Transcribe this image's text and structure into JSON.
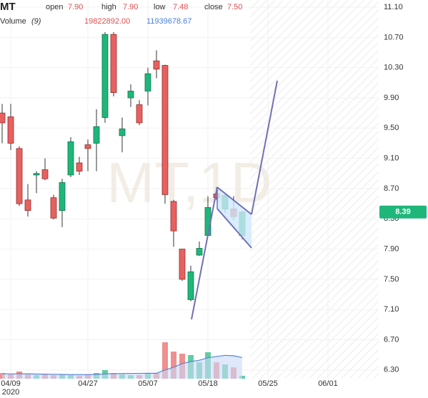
{
  "chart_data": {
    "type": "candlestick",
    "watermark": "MT,1D",
    "header": {
      "symbol": "MT",
      "fields": [
        {
          "label": "open",
          "value": "7.90"
        },
        {
          "label": "high",
          "value": "7.90"
        },
        {
          "label": "low",
          "value": "7.48"
        },
        {
          "label": "close",
          "value": "7.50"
        }
      ],
      "volume_label": "Volume",
      "volume_period": "(9)",
      "volume_value": "19822892.00",
      "volume_ma_value": "11939678.67"
    },
    "open": [
      9.7,
      9.65,
      9.23,
      8.55,
      8.88,
      8.95,
      8.58,
      8.41,
      8.88,
      9.04,
      9.28,
      9.3,
      9.64,
      10.74,
      9.4,
      9.9,
      9.81,
      9.99,
      10.39,
      10.33,
      8.53,
      7.9,
      7.23,
      7.82,
      8.08,
      8.63,
      8.43,
      8.43,
      8.08
    ],
    "high": [
      9.82,
      9.82,
      9.26,
      8.76,
      8.93,
      9.1,
      8.62,
      8.83,
      9.38,
      9.12,
      9.35,
      9.75,
      10.77,
      10.77,
      9.64,
      10.08,
      9.87,
      10.3,
      10.53,
      10.34,
      8.55,
      7.9,
      7.68,
      8.0,
      8.6,
      8.72,
      8.64,
      8.6,
      8.4
    ],
    "low": [
      9.3,
      9.21,
      8.47,
      8.33,
      8.64,
      8.81,
      8.29,
      8.19,
      8.85,
      8.88,
      8.93,
      8.93,
      9.57,
      9.92,
      9.18,
      9.78,
      9.54,
      9.8,
      10.16,
      8.5,
      7.93,
      7.48,
      7.21,
      7.81,
      8.06,
      8.55,
      8.38,
      8.28,
      8.03
    ],
    "close": [
      9.57,
      9.3,
      8.5,
      8.41,
      8.9,
      8.83,
      8.31,
      8.78,
      9.32,
      8.93,
      9.23,
      9.52,
      10.74,
      9.97,
      9.49,
      9.99,
      9.57,
      10.22,
      10.28,
      8.62,
      8.14,
      7.5,
      7.6,
      7.91,
      8.45,
      8.58,
      8.61,
      8.33,
      8.39
    ],
    "volume": [
      4500000,
      3400000,
      5700000,
      3400000,
      2800000,
      3400000,
      2800000,
      3400000,
      2800000,
      2300000,
      3400000,
      4500000,
      6800000,
      4500000,
      3400000,
      2800000,
      2800000,
      4500000,
      4500000,
      28900000,
      21500000,
      19822892,
      18700000,
      13000000,
      21000000,
      13000000,
      11300000,
      9000000,
      2300000
    ],
    "volume_ma": [
      4000000,
      3800000,
      4000000,
      3900000,
      3700000,
      3600000,
      3500000,
      3400000,
      3300000,
      3200000,
      3300000,
      3400000,
      3800000,
      4000000,
      4100000,
      4200000,
      4200000,
      4300000,
      4300000,
      7000000,
      9000000,
      11939678.67,
      13600000,
      14600000,
      16600000,
      17600000,
      18500000,
      18200000,
      16800000
    ],
    "up_color": "#1fb67a",
    "down_color": "#e8605f",
    "volume_ma_color": "#5b84d6",
    "volume_ma_fill": "#c9daf8",
    "last_price": {
      "value": 8.39,
      "label": "8.39"
    },
    "xlim": [
      -0.25,
      43.92
    ],
    "xticks": [
      {
        "value": 1,
        "label": "04/09"
      },
      {
        "value": 10,
        "label": "04/27"
      },
      {
        "value": 17,
        "label": "05/07"
      },
      {
        "value": 24,
        "label": "05/18"
      },
      {
        "value": 31,
        "label": "05/25"
      },
      {
        "value": 38,
        "label": "06/01"
      }
    ],
    "year_label": "2020",
    "ylim": [
      6.185,
      11.195
    ],
    "yticks": [
      {
        "value": 6.3,
        "label": "6.30"
      },
      {
        "value": 6.7,
        "label": "6.70"
      },
      {
        "value": 7.1,
        "label": "7.10"
      },
      {
        "value": 7.5,
        "label": "7.50"
      },
      {
        "value": 7.9,
        "label": "7.90"
      },
      {
        "value": 8.3,
        "label": "8.30"
      },
      {
        "value": 8.7,
        "label": "8.70"
      },
      {
        "value": 9.1,
        "label": "9.10"
      },
      {
        "value": 9.5,
        "label": "9.50"
      },
      {
        "value": 9.9,
        "label": "9.90"
      },
      {
        "value": 10.3,
        "label": "10.30"
      },
      {
        "value": 10.7,
        "label": "10.70"
      },
      {
        "value": 11.1,
        "label": "11.10"
      }
    ],
    "volume_ylim": [
      0,
      56640000
    ],
    "grid": true
  }
}
